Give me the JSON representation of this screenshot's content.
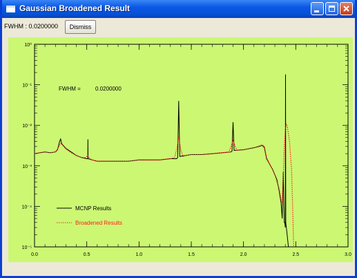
{
  "window": {
    "title": "Gaussian Broadened Result"
  },
  "toolbar": {
    "fwhm_label": "FWHM : 0.0200000",
    "dismiss_label": "Dismiss"
  },
  "plot": {
    "background": "#ccf773",
    "annotation_label": "FWHM =",
    "annotation_value": "0.0200000"
  },
  "chart_data": {
    "type": "line",
    "x_ticks": [
      "0.0",
      "0.5",
      "1.0",
      "1.5",
      "2.0",
      "2.5",
      "3.0"
    ],
    "y_ticks": [
      "10⁻⁵",
      "10⁻⁴",
      "10⁻³",
      "10⁻²",
      "10⁻¹",
      "10⁰"
    ],
    "xlim": [
      0,
      3
    ],
    "ylim_log10": [
      -5,
      0
    ],
    "y_scale": "log",
    "legend_position": "bottom-left",
    "series": [
      {
        "name": "MCNP Results",
        "color": "#000000",
        "style": "solid",
        "points": [
          [
            0.0,
            0.002
          ],
          [
            0.05,
            0.0021
          ],
          [
            0.1,
            0.0022
          ],
          [
            0.15,
            0.0021
          ],
          [
            0.2,
            0.0022
          ],
          [
            0.22,
            0.0025
          ],
          [
            0.24,
            0.004
          ],
          [
            0.25,
            0.0046
          ],
          [
            0.26,
            0.0035
          ],
          [
            0.3,
            0.0027
          ],
          [
            0.35,
            0.0022
          ],
          [
            0.4,
            0.0018
          ],
          [
            0.45,
            0.0016
          ],
          [
            0.5,
            0.0015
          ],
          [
            0.51,
            0.0015
          ],
          [
            0.511,
            0.0045
          ],
          [
            0.512,
            0.0015
          ],
          [
            0.55,
            0.0014
          ],
          [
            0.6,
            0.0013
          ],
          [
            0.7,
            0.0013
          ],
          [
            0.8,
            0.0013
          ],
          [
            0.9,
            0.0013
          ],
          [
            1.0,
            0.0014
          ],
          [
            1.1,
            0.0014
          ],
          [
            1.2,
            0.0014
          ],
          [
            1.3,
            0.0015
          ],
          [
            1.36,
            0.0015
          ],
          [
            1.37,
            0.0016
          ],
          [
            1.38,
            0.04
          ],
          [
            1.39,
            0.0017
          ],
          [
            1.45,
            0.0018
          ],
          [
            1.5,
            0.0019
          ],
          [
            1.6,
            0.0019
          ],
          [
            1.7,
            0.002
          ],
          [
            1.8,
            0.0021
          ],
          [
            1.88,
            0.0022
          ],
          [
            1.89,
            0.0023
          ],
          [
            1.9,
            0.012
          ],
          [
            1.91,
            0.0024
          ],
          [
            2.0,
            0.0025
          ],
          [
            2.1,
            0.0028
          ],
          [
            2.15,
            0.003
          ],
          [
            2.18,
            0.0032
          ],
          [
            2.2,
            0.0028
          ],
          [
            2.22,
            0.0015
          ],
          [
            2.25,
            0.0011
          ],
          [
            2.28,
            0.0008
          ],
          [
            2.3,
            0.0006
          ],
          [
            2.32,
            0.00045
          ],
          [
            2.34,
            0.00025
          ],
          [
            2.36,
            0.00012
          ],
          [
            2.37,
            5e-05
          ],
          [
            2.38,
            0.0007
          ],
          [
            2.39,
            4e-05
          ],
          [
            2.395,
            4e-05
          ],
          [
            2.4,
            3e-05
          ],
          [
            2.402,
            0.18
          ],
          [
            2.404,
            4e-05
          ],
          [
            2.41,
            3e-05
          ],
          [
            2.43,
            1e-05
          ]
        ]
      },
      {
        "name": "Broadened Results",
        "color": "#ff2020",
        "style": "dotted",
        "points": [
          [
            0.0,
            0.002
          ],
          [
            0.05,
            0.0021
          ],
          [
            0.1,
            0.0022
          ],
          [
            0.15,
            0.0021
          ],
          [
            0.2,
            0.0022
          ],
          [
            0.22,
            0.0026
          ],
          [
            0.24,
            0.0032
          ],
          [
            0.25,
            0.0036
          ],
          [
            0.27,
            0.0032
          ],
          [
            0.3,
            0.0026
          ],
          [
            0.35,
            0.0021
          ],
          [
            0.4,
            0.0018
          ],
          [
            0.45,
            0.0016
          ],
          [
            0.49,
            0.0016
          ],
          [
            0.51,
            0.0018
          ],
          [
            0.53,
            0.0015
          ],
          [
            0.55,
            0.0014
          ],
          [
            0.6,
            0.0013
          ],
          [
            0.7,
            0.0013
          ],
          [
            0.8,
            0.0013
          ],
          [
            0.9,
            0.0013
          ],
          [
            1.0,
            0.0014
          ],
          [
            1.1,
            0.0014
          ],
          [
            1.2,
            0.0014
          ],
          [
            1.3,
            0.0015
          ],
          [
            1.34,
            0.0016
          ],
          [
            1.36,
            0.0025
          ],
          [
            1.38,
            0.0052
          ],
          [
            1.4,
            0.0025
          ],
          [
            1.42,
            0.0017
          ],
          [
            1.45,
            0.0018
          ],
          [
            1.5,
            0.0019
          ],
          [
            1.6,
            0.0019
          ],
          [
            1.7,
            0.002
          ],
          [
            1.8,
            0.0021
          ],
          [
            1.86,
            0.0022
          ],
          [
            1.88,
            0.003
          ],
          [
            1.9,
            0.0042
          ],
          [
            1.92,
            0.003
          ],
          [
            1.94,
            0.0024
          ],
          [
            2.0,
            0.0025
          ],
          [
            2.1,
            0.0028
          ],
          [
            2.15,
            0.0031
          ],
          [
            2.18,
            0.0033
          ],
          [
            2.2,
            0.003
          ],
          [
            2.22,
            0.0016
          ],
          [
            2.25,
            0.0011
          ],
          [
            2.28,
            0.0008
          ],
          [
            2.3,
            0.0006
          ],
          [
            2.32,
            0.0004
          ],
          [
            2.34,
            0.00028
          ],
          [
            2.36,
            0.00015
          ],
          [
            2.37,
            0.00012
          ],
          [
            2.38,
            0.0005
          ],
          [
            2.39,
            0.003
          ],
          [
            2.4,
            0.008
          ],
          [
            2.41,
            0.011
          ],
          [
            2.42,
            0.009
          ],
          [
            2.44,
            0.004
          ],
          [
            2.46,
            0.0008
          ],
          [
            2.47,
            0.0001
          ],
          [
            2.48,
            1e-05
          ]
        ]
      }
    ]
  }
}
